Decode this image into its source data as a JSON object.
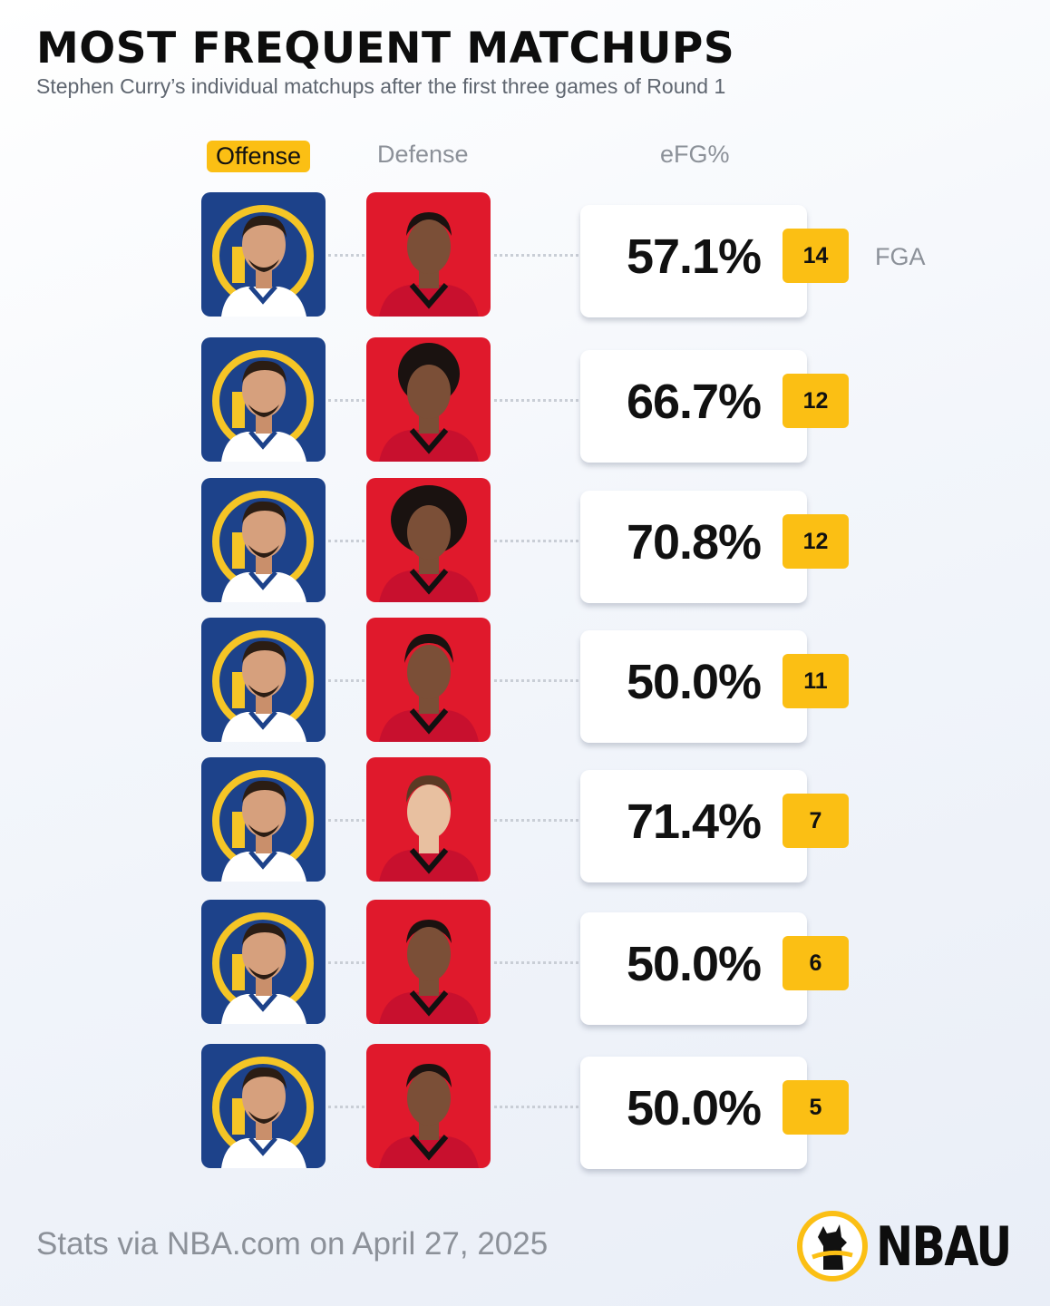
{
  "header": {
    "title": "MOST FREQUENT MATCHUPS",
    "subtitle": "Stephen Curry’s individual matchups after the first three games of Round 1"
  },
  "columns": {
    "offense": "Offense",
    "defense": "Defense",
    "efg": "eFG%",
    "fga": "FGA"
  },
  "colors": {
    "accent": "#fbbf14",
    "offense_bg": "#1d428a",
    "defense_bg": "#e0192c"
  },
  "chart_data": {
    "type": "table",
    "columns": [
      "eFG%",
      "FGA"
    ],
    "rows": [
      {
        "efg": "57.1%",
        "fga": "14"
      },
      {
        "efg": "66.7%",
        "fga": "12"
      },
      {
        "efg": "70.8%",
        "fga": "12"
      },
      {
        "efg": "50.0%",
        "fga": "11"
      },
      {
        "efg": "71.4%",
        "fga": "7"
      },
      {
        "efg": "50.0%",
        "fga": "6"
      },
      {
        "efg": "50.0%",
        "fga": "5"
      }
    ]
  },
  "footer": {
    "source": "Stats via NBA.com on April 27, 2025",
    "logo_text": "NBAU"
  }
}
